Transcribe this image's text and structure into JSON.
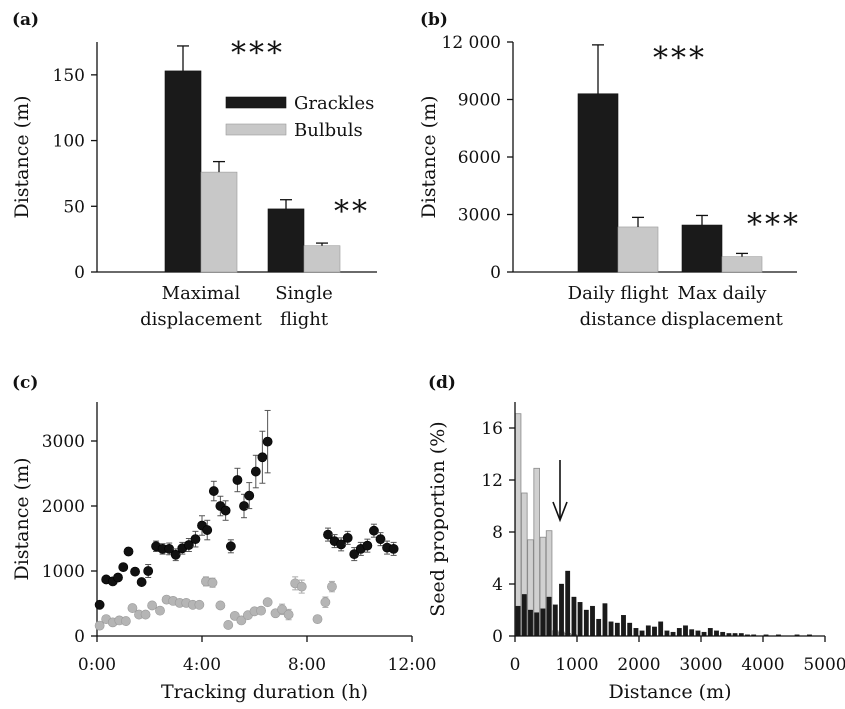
{
  "chart_data": [
    {
      "panel": "(a)",
      "type": "bar",
      "categories": [
        [
          "Maximal",
          "displacement"
        ],
        [
          "Single",
          "flight"
        ]
      ],
      "ylabel": "Distance (m)",
      "ylim": [
        0,
        175
      ],
      "yticks": [
        0,
        50,
        100,
        150
      ],
      "legend": "top-right",
      "series": [
        {
          "name": "Grackles",
          "color": "#1a1a1a",
          "values": [
            153,
            48
          ],
          "errors": [
            19,
            7
          ]
        },
        {
          "name": "Bulbuls",
          "color": "#c8c8c8",
          "values": [
            76,
            20
          ],
          "errors": [
            8,
            2
          ]
        }
      ],
      "significance": [
        "***",
        "**"
      ]
    },
    {
      "panel": "(b)",
      "type": "bar",
      "categories": [
        [
          "Daily flight",
          "distance"
        ],
        [
          "Max daily",
          "displacement"
        ]
      ],
      "ylabel": "Distance (m)",
      "ylim": [
        0,
        12000
      ],
      "yticks": [
        0,
        3000,
        6000,
        9000,
        12000
      ],
      "ytick_labels": [
        "0",
        "3000",
        "6000",
        "9000",
        "12 000"
      ],
      "series": [
        {
          "name": "Grackles",
          "color": "#1a1a1a",
          "values": [
            9300,
            2450
          ],
          "errors": [
            2550,
            500
          ]
        },
        {
          "name": "Bulbuls",
          "color": "#c8c8c8",
          "values": [
            2350,
            800
          ],
          "errors": [
            500,
            170
          ]
        }
      ],
      "significance": [
        "***",
        "***"
      ]
    },
    {
      "panel": "(c)",
      "type": "scatter",
      "xlabel": "Tracking duration (h)",
      "ylabel": "Distance (m)",
      "xlim": [
        0,
        12
      ],
      "ylim": [
        0,
        3600
      ],
      "xticks": [
        0,
        4,
        8,
        12
      ],
      "xtick_labels": [
        "0:00",
        "4:00",
        "8:00",
        "12:00"
      ],
      "yticks": [
        0,
        1000,
        2000,
        3000
      ],
      "series": [
        {
          "name": "Grackles",
          "color": "#111111",
          "points": [
            [
              0.1,
              480,
              0
            ],
            [
              0.35,
              870,
              0
            ],
            [
              0.6,
              840,
              0
            ],
            [
              0.8,
              900,
              0
            ],
            [
              1.0,
              1060,
              0
            ],
            [
              1.2,
              1300,
              0
            ],
            [
              1.45,
              990,
              0
            ],
            [
              1.7,
              830,
              0
            ],
            [
              1.95,
              1000,
              100
            ],
            [
              2.25,
              1380,
              80
            ],
            [
              2.5,
              1340,
              80
            ],
            [
              2.75,
              1340,
              90
            ],
            [
              3.0,
              1250,
              90
            ],
            [
              3.25,
              1350,
              90
            ],
            [
              3.5,
              1400,
              100
            ],
            [
              3.75,
              1490,
              120
            ],
            [
              4.0,
              1700,
              150
            ],
            [
              4.2,
              1630,
              150
            ],
            [
              4.45,
              2230,
              150
            ],
            [
              4.7,
              2000,
              150
            ],
            [
              4.9,
              1930,
              150
            ],
            [
              5.1,
              1380,
              100
            ],
            [
              5.35,
              2400,
              180
            ],
            [
              5.6,
              2000,
              180
            ],
            [
              5.8,
              2160,
              200
            ],
            [
              6.05,
              2530,
              250
            ],
            [
              6.3,
              2750,
              400
            ],
            [
              6.5,
              2990,
              480
            ],
            [
              8.8,
              1560,
              100
            ],
            [
              9.05,
              1460,
              100
            ],
            [
              9.3,
              1410,
              100
            ],
            [
              9.55,
              1510,
              100
            ],
            [
              9.8,
              1260,
              100
            ],
            [
              10.05,
              1340,
              100
            ],
            [
              10.3,
              1390,
              100
            ],
            [
              10.55,
              1620,
              100
            ],
            [
              10.8,
              1490,
              100
            ],
            [
              11.05,
              1360,
              100
            ],
            [
              11.3,
              1340,
              100
            ]
          ]
        },
        {
          "name": "Bulbuls",
          "color": "#b5b5b5",
          "points": [
            [
              0.1,
              160,
              0
            ],
            [
              0.35,
              260,
              0
            ],
            [
              0.6,
              210,
              0
            ],
            [
              0.85,
              240,
              0
            ],
            [
              1.1,
              230,
              0
            ],
            [
              1.35,
              430,
              0
            ],
            [
              1.6,
              330,
              0
            ],
            [
              1.85,
              330,
              0
            ],
            [
              2.1,
              470,
              0
            ],
            [
              2.4,
              390,
              0
            ],
            [
              2.65,
              560,
              0
            ],
            [
              2.9,
              540,
              0
            ],
            [
              3.15,
              510,
              0
            ],
            [
              3.4,
              510,
              0
            ],
            [
              3.65,
              480,
              0
            ],
            [
              3.9,
              480,
              0
            ],
            [
              4.15,
              840,
              70
            ],
            [
              4.4,
              820,
              70
            ],
            [
              4.7,
              470,
              0
            ],
            [
              5.0,
              170,
              0
            ],
            [
              5.25,
              310,
              0
            ],
            [
              5.5,
              240,
              0
            ],
            [
              5.75,
              320,
              0
            ],
            [
              6.0,
              380,
              0
            ],
            [
              6.25,
              390,
              0
            ],
            [
              6.5,
              520,
              0
            ],
            [
              6.8,
              350,
              0
            ],
            [
              7.05,
              410,
              80
            ],
            [
              7.3,
              330,
              80
            ],
            [
              7.55,
              810,
              100
            ],
            [
              7.8,
              760,
              100
            ],
            [
              8.4,
              260,
              0
            ],
            [
              8.7,
              520,
              80
            ],
            [
              8.95,
              760,
              80
            ]
          ]
        }
      ]
    },
    {
      "panel": "(d)",
      "type": "bar",
      "xlabel": "Distance (m)",
      "ylabel": "Seed proportion (%)",
      "xlim": [
        0,
        5000
      ],
      "ylim": [
        0,
        18
      ],
      "xticks": [
        0,
        1000,
        2000,
        3000,
        4000,
        5000
      ],
      "yticks": [
        0,
        4,
        8,
        12,
        16
      ],
      "bin_width": 100,
      "annotation": "arrow at ~500 m",
      "arrow_x": 500,
      "series": [
        {
          "name": "Bulbuls",
          "color": "#d0d0d0",
          "values": [
            17.1,
            11.0,
            7.4,
            12.9,
            7.6,
            8.1,
            0.4,
            0.3,
            0.2,
            0.1
          ]
        },
        {
          "name": "Grackles",
          "color": "#1a1a1a",
          "values": [
            2.3,
            3.2,
            2.0,
            1.8,
            2.1,
            3.0,
            2.4,
            4.0,
            5.0,
            3.0,
            2.6,
            2.0,
            2.3,
            1.3,
            2.5,
            1.1,
            1.0,
            1.6,
            1.0,
            0.6,
            0.4,
            0.8,
            0.7,
            1.1,
            0.4,
            0.3,
            0.6,
            0.8,
            0.5,
            0.4,
            0.3,
            0.6,
            0.4,
            0.3,
            0.2,
            0.2,
            0.2,
            0.1,
            0.1,
            0.0,
            0.1,
            0.0,
            0.1,
            0.0,
            0.0,
            0.1,
            0.0,
            0.1,
            0.0,
            0.0
          ]
        }
      ]
    }
  ]
}
